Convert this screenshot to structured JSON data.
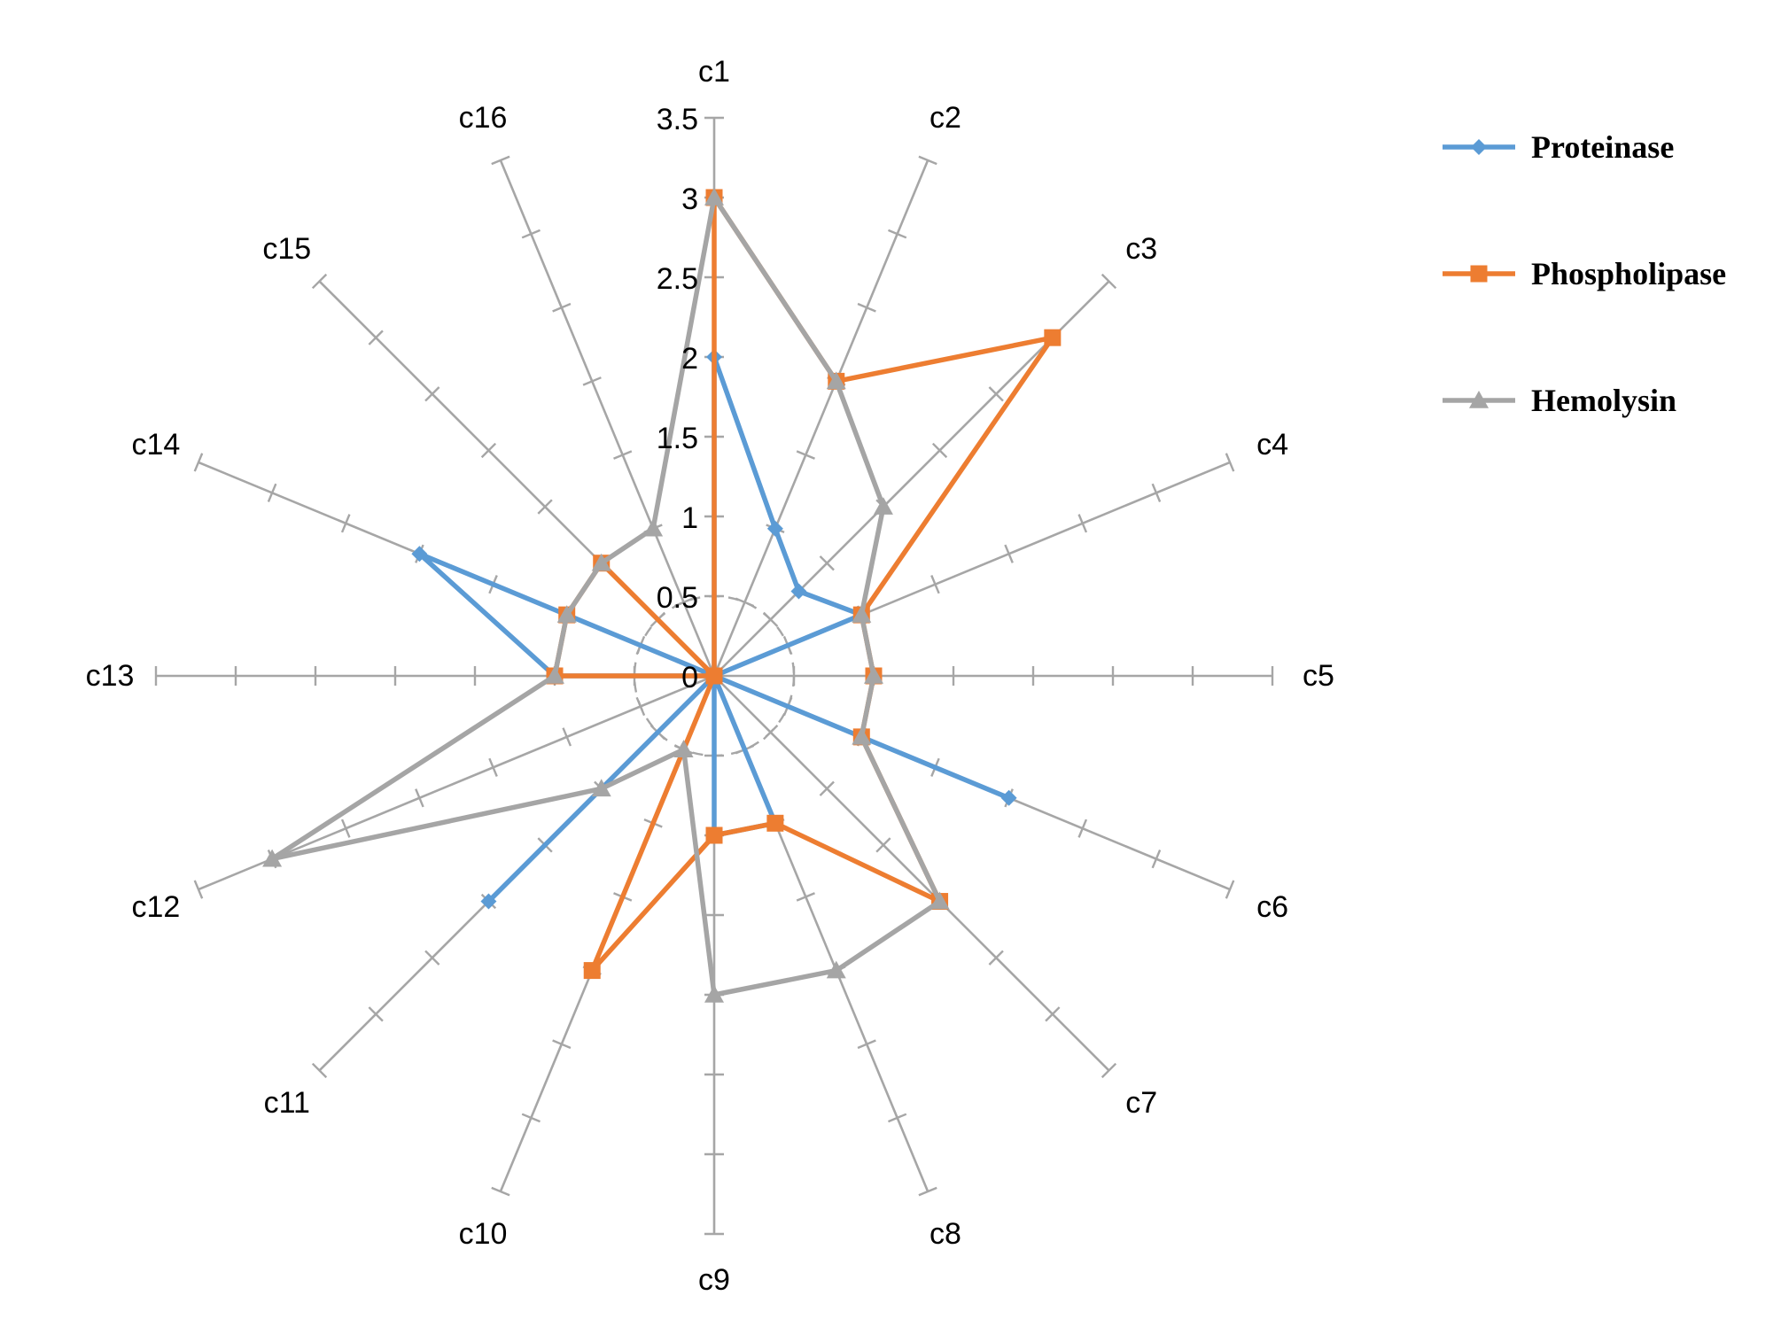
{
  "chart_data": {
    "type": "radar",
    "title": "",
    "categories": [
      "c1",
      "c2",
      "c3",
      "c4",
      "c5",
      "c6",
      "c7",
      "c8",
      "c9",
      "c10",
      "c11",
      "c12",
      "c13",
      "c14",
      "c15",
      "c16"
    ],
    "rlim": [
      0,
      3.5
    ],
    "ticks": [
      "0",
      "0.5",
      "1",
      "1.5",
      "2",
      "2.5",
      "3",
      "3.5"
    ],
    "tick_values": [
      0,
      0.5,
      1,
      1.5,
      2,
      2.5,
      3,
      3.5
    ],
    "grid": "axis spokes with tick marks; dashed ring at 0.5",
    "legend_position": "top-right",
    "series": [
      {
        "name": "Proteinase",
        "color": "#5b9bd5",
        "marker": "diamond",
        "values": [
          2,
          1.0,
          0.75,
          1,
          0,
          2,
          0,
          1,
          1,
          0,
          2,
          0,
          1,
          2,
          0,
          0
        ]
      },
      {
        "name": "Phospholipase",
        "color": "#ed7d31",
        "marker": "square",
        "values": [
          3,
          2,
          3,
          1,
          1,
          1,
          2,
          1,
          1,
          2,
          0,
          0,
          1,
          1,
          1,
          0
        ]
      },
      {
        "name": "Hemolysin",
        "color": "#a5a5a5",
        "marker": "triangle",
        "values": [
          3,
          2,
          1.5,
          1,
          1,
          1,
          2,
          2,
          2,
          0.5,
          1,
          3,
          1,
          1,
          1,
          1
        ]
      }
    ]
  }
}
